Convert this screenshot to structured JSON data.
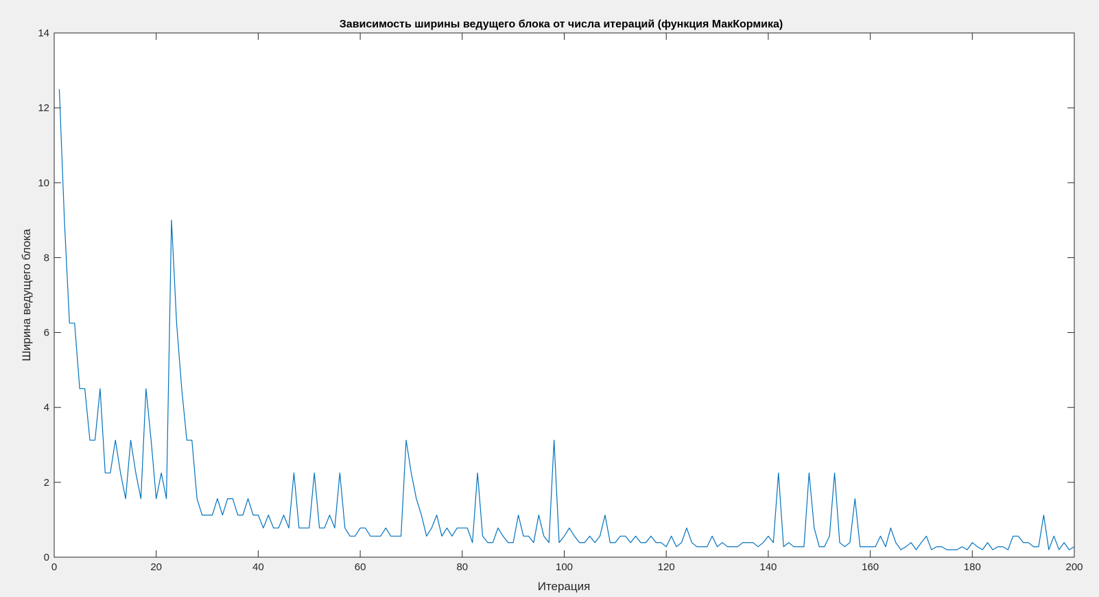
{
  "chart_data": {
    "type": "line",
    "title": "Зависимость ширины ведущего блока от числа итераций (функция МакКормика)",
    "xlabel": "Итерация",
    "ylabel": "Ширина ведущего блока",
    "xlim": [
      0,
      200
    ],
    "ylim": [
      0,
      14
    ],
    "xticks": [
      "0",
      "20",
      "40",
      "60",
      "80",
      "100",
      "120",
      "140",
      "160",
      "180",
      "200"
    ],
    "yticks": [
      "0",
      "2",
      "4",
      "6",
      "8",
      "10",
      "12",
      "14"
    ],
    "grid": false,
    "line_color": "#0072bd",
    "series": [
      {
        "x": [
          1,
          2,
          3,
          4,
          5,
          6,
          7,
          8,
          9,
          10,
          11,
          12,
          13,
          14,
          15,
          16,
          17,
          18,
          19,
          20,
          21,
          22,
          23,
          24,
          25,
          26,
          27,
          28,
          29,
          30,
          31,
          32,
          33,
          34,
          35,
          36,
          37,
          38,
          39,
          40,
          41,
          42,
          43,
          44,
          45,
          46,
          47,
          48,
          49,
          50,
          51,
          52,
          53,
          54,
          55,
          56,
          57,
          58,
          59,
          60,
          61,
          62,
          63,
          64,
          65,
          66,
          67,
          68,
          69,
          70,
          71,
          72,
          73,
          74,
          75,
          76,
          77,
          78,
          79,
          80,
          81,
          82,
          83,
          84,
          85,
          86,
          87,
          88,
          89,
          90,
          91,
          92,
          93,
          94,
          95,
          96,
          97,
          98,
          99,
          100,
          101,
          102,
          103,
          104,
          105,
          106,
          107,
          108,
          109,
          110,
          111,
          112,
          113,
          114,
          115,
          116,
          117,
          118,
          119,
          120,
          121,
          122,
          123,
          124,
          125,
          126,
          127,
          128,
          129,
          130,
          131,
          132,
          133,
          134,
          135,
          136,
          137,
          138,
          139,
          140,
          141,
          142,
          143,
          144,
          145,
          146,
          147,
          148,
          149,
          150,
          151,
          152,
          153,
          154,
          155,
          156,
          157,
          158,
          159,
          160,
          161,
          162,
          163,
          164,
          165,
          166,
          167,
          168,
          169,
          170,
          171,
          172,
          173,
          174,
          175,
          176,
          177,
          178,
          179,
          180,
          181,
          182,
          183,
          184,
          185,
          186,
          187,
          188,
          189,
          190,
          191,
          192,
          193,
          194,
          195,
          196,
          197,
          198,
          199,
          200
        ],
        "values": [
          12.5,
          9.0,
          6.25,
          6.25,
          4.5,
          4.5,
          3.125,
          3.125,
          4.5,
          2.25,
          2.25,
          3.125,
          2.25,
          1.5625,
          3.125,
          2.25,
          1.5625,
          4.5,
          3.125,
          1.5625,
          2.25,
          1.5625,
          9.0,
          6.25,
          4.5,
          3.125,
          3.125,
          1.5625,
          1.125,
          1.125,
          1.125,
          1.5625,
          1.125,
          1.5625,
          1.5625,
          1.125,
          1.125,
          1.5625,
          1.125,
          1.125,
          0.78,
          1.125,
          0.78,
          0.78,
          1.125,
          0.78,
          2.25,
          0.78,
          0.78,
          0.78,
          2.25,
          0.78,
          0.78,
          1.125,
          0.78,
          2.25,
          0.78,
          0.5625,
          0.5625,
          0.78,
          0.78,
          0.5625,
          0.5625,
          0.5625,
          0.78,
          0.5625,
          0.5625,
          0.5625,
          3.125,
          2.25,
          1.5625,
          1.125,
          0.5625,
          0.78,
          1.125,
          0.5625,
          0.78,
          0.5625,
          0.78,
          0.78,
          0.78,
          0.39,
          2.25,
          0.5625,
          0.39,
          0.39,
          0.78,
          0.5625,
          0.39,
          0.39,
          1.125,
          0.5625,
          0.5625,
          0.39,
          1.125,
          0.5625,
          0.39,
          3.125,
          0.39,
          0.5625,
          0.78,
          0.5625,
          0.39,
          0.39,
          0.5625,
          0.39,
          0.5625,
          1.125,
          0.39,
          0.39,
          0.5625,
          0.5625,
          0.39,
          0.5625,
          0.39,
          0.39,
          0.5625,
          0.39,
          0.39,
          0.28,
          0.5625,
          0.28,
          0.39,
          0.78,
          0.39,
          0.28,
          0.28,
          0.28,
          0.5625,
          0.28,
          0.39,
          0.28,
          0.28,
          0.28,
          0.39,
          0.39,
          0.39,
          0.28,
          0.39,
          0.5625,
          0.39,
          2.25,
          0.28,
          0.39,
          0.28,
          0.28,
          0.28,
          2.25,
          0.78,
          0.28,
          0.28,
          0.5625,
          2.25,
          0.39,
          0.28,
          0.39,
          1.5625,
          0.28,
          0.28,
          0.28,
          0.28,
          0.5625,
          0.28,
          0.78,
          0.39,
          0.2,
          0.28,
          0.39,
          0.2,
          0.39,
          0.5625,
          0.2,
          0.28,
          0.28,
          0.2,
          0.2,
          0.2,
          0.28,
          0.2,
          0.39,
          0.28,
          0.2,
          0.39,
          0.2,
          0.28,
          0.28,
          0.2,
          0.5625,
          0.5625,
          0.39,
          0.39,
          0.28,
          0.28,
          1.125,
          0.2,
          0.5625,
          0.2,
          0.39,
          0.2,
          0.28
        ]
      }
    ]
  }
}
